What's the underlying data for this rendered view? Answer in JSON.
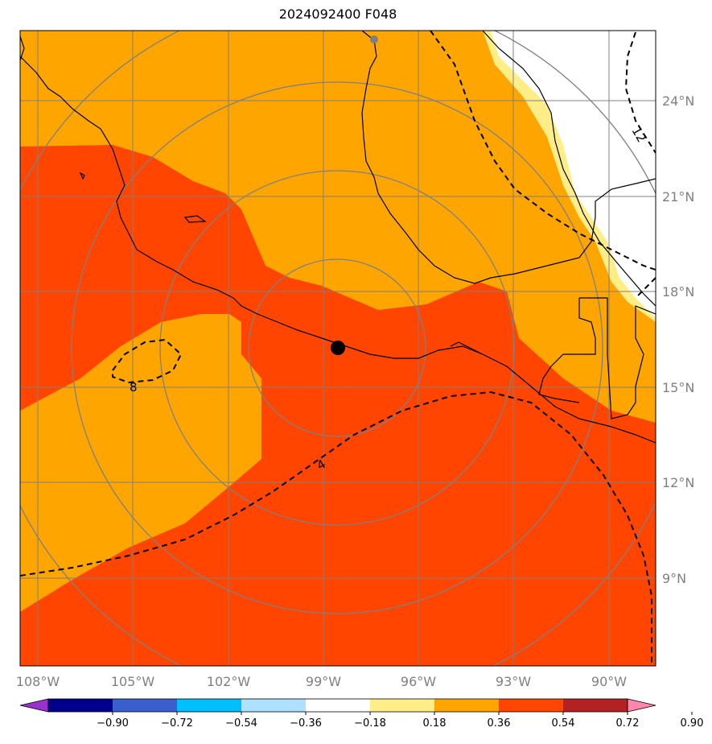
{
  "title": "2024092400 F048",
  "map": {
    "lon_ticks": [
      "108°W",
      "105°W",
      "102°W",
      "99°W",
      "96°W",
      "93°W",
      "90°W"
    ],
    "lat_ticks": [
      "24°N",
      "21°N",
      "18°N",
      "15°N",
      "12°N",
      "9°N"
    ],
    "contour_labels": [
      "12",
      "8",
      "4"
    ],
    "fill_colors": {
      "white": "#ffffff",
      "light_yellow": "#ffee88",
      "orange": "#ffa500",
      "red_orange": "#ff4500"
    },
    "center_marker": {
      "lon": -98.5,
      "lat": 16.2
    }
  },
  "colorbar": {
    "ticks": [
      "−0.90",
      "−0.72",
      "−0.54",
      "−0.36",
      "−0.18",
      "0.18",
      "0.36",
      "0.54",
      "0.72",
      "0.90"
    ],
    "colors": [
      "#9932cc",
      "#00008b",
      "#3a5fcd",
      "#00bfff",
      "#b0e0ff",
      "#ffffff",
      "#ffee88",
      "#ffa500",
      "#ff4500",
      "#b22222",
      "#ff88aa"
    ]
  }
}
